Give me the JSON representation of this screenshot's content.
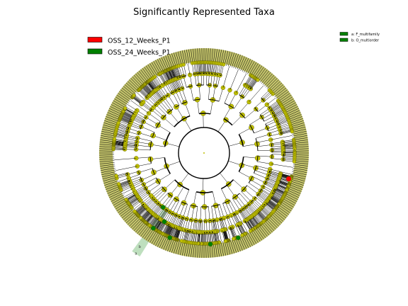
{
  "title": "Significantly Represented Taxa",
  "legend": [
    {
      "label": "OSS_12_Weeks_P1",
      "color": "#ff0000"
    },
    {
      "label": "OSS_24_Weeks_P1",
      "color": "#008000"
    }
  ],
  "clade_legend": [
    {
      "label": "a: F_multifamily",
      "color": "#008000"
    },
    {
      "label": "b: O_multiorder",
      "color": "#008000"
    }
  ],
  "highlight_labels": [
    "b",
    "a"
  ],
  "colors": {
    "node_default": "#bfbf00",
    "node_outline": "#5a5a00",
    "edge": "#000000",
    "ring_fill": "#c2c26a",
    "highlight_green": "#008000",
    "highlight_red": "#ff0000",
    "highlight_band": "#a8d4a8"
  },
  "tree": {
    "tip_count": 300,
    "level_count": 6,
    "red_tip_angle_deg": 17,
    "green_band_angle_deg": 124,
    "green_node_angles_deg": [
      124,
      120,
      127,
      112,
      86,
      68
    ],
    "major_clade_angles_deg": [
      -170,
      -130,
      -95,
      -55,
      -15,
      20,
      60,
      95,
      130,
      165
    ]
  }
}
